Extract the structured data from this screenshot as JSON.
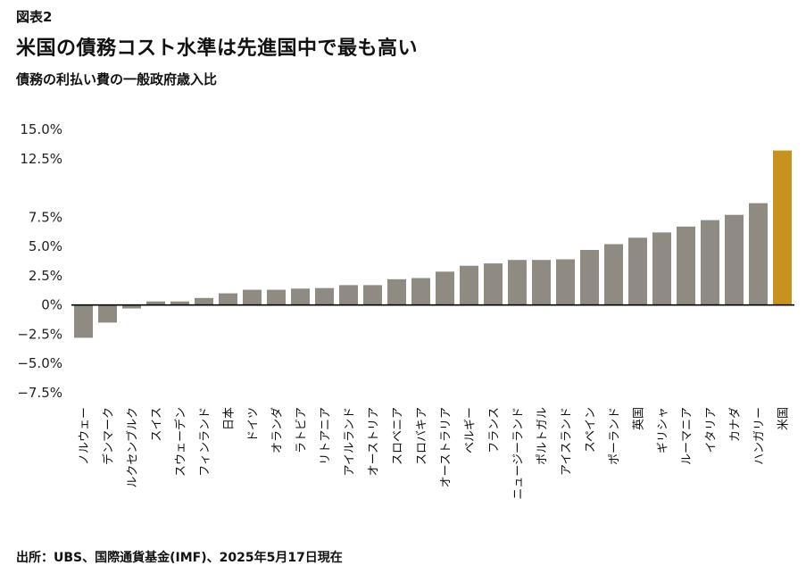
{
  "header": {
    "figure_label": "図表2",
    "title": "米国の債務コスト水準は先進国中で最も高い",
    "subtitle": "債務の利払い費の一般政府歳入比"
  },
  "footer": {
    "source": "出所：UBS、国際通貨基金(IMF)、2025年5月17日現在"
  },
  "colors": {
    "bar": "#8f8b83",
    "highlight": "#c8921f",
    "zero_line": "#000000"
  },
  "chart_data": {
    "type": "bar",
    "title": "米国の債務コスト水準は先進国中で最も高い",
    "subtitle": "債務の利払い費の一般政府歳入比",
    "categories": [
      "ノルウェー",
      "デンマーク",
      "ルクセンブルク",
      "スイス",
      "スウェーデン",
      "フィンランド",
      "日本",
      "ドイツ",
      "オランダ",
      "ラトビア",
      "リトアニア",
      "アイルランド",
      "オーストリア",
      "スロベニア",
      "スロバキア",
      "オーストラリア",
      "ベルギー",
      "フランス",
      "ニュージーランド",
      "ポルトガル",
      "アイスランド",
      "スペイン",
      "ポーランド",
      "英国",
      "ギリシャ",
      "ルーマニア",
      "イタリア",
      "カナダ",
      "ハンガリー",
      "米国"
    ],
    "values": [
      -2.8,
      -1.5,
      -0.3,
      0.3,
      0.3,
      0.6,
      1.0,
      1.3,
      1.3,
      1.4,
      1.45,
      1.7,
      1.7,
      2.2,
      2.3,
      2.85,
      3.35,
      3.55,
      3.85,
      3.85,
      3.9,
      4.7,
      5.2,
      5.75,
      6.2,
      6.7,
      7.25,
      7.7,
      8.7,
      13.2
    ],
    "highlight_category": "米国",
    "yticks": [
      15.0,
      12.5,
      7.5,
      5.0,
      2.5,
      0,
      -2.5,
      -5.0,
      -7.5
    ],
    "ytick_labels": [
      "15.0%",
      "12.5%",
      "7.5%",
      "5.0%",
      "2.5%",
      "0%",
      "−2.5%",
      "−5.0%",
      "−7.5%"
    ],
    "ylim": [
      -7.5,
      15.0
    ],
    "grid": false,
    "legend": "none"
  }
}
